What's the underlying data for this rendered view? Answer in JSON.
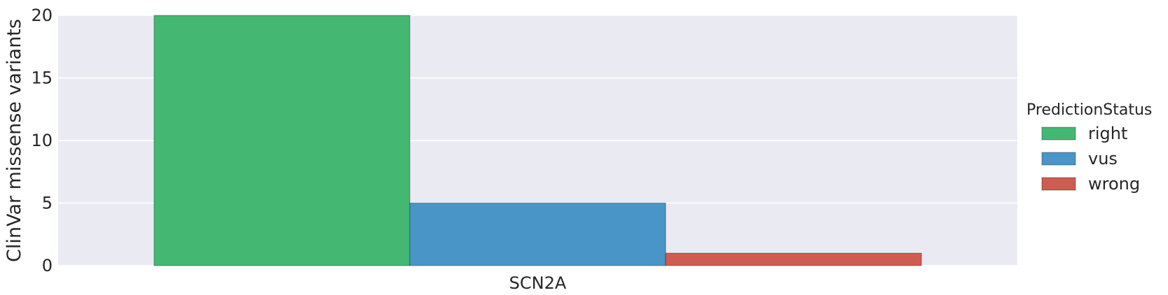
{
  "chart_data": {
    "type": "bar",
    "categories": [
      "SCN2A"
    ],
    "series": [
      {
        "name": "right",
        "values": [
          20
        ],
        "color": "#44b873"
      },
      {
        "name": "vus",
        "values": [
          5
        ],
        "color": "#4a95c7"
      },
      {
        "name": "wrong",
        "values": [
          1
        ],
        "color": "#cf5c50"
      }
    ],
    "title": "",
    "xlabel": "",
    "ylabel": "ClinVar missense variants",
    "ylim": [
      0,
      20
    ],
    "yticks": [
      0,
      5,
      10,
      15,
      20
    ],
    "grid": true,
    "background_color": "#eaeaf2",
    "legend": {
      "title": "PredictionStatus",
      "placement": "right-outside"
    }
  }
}
